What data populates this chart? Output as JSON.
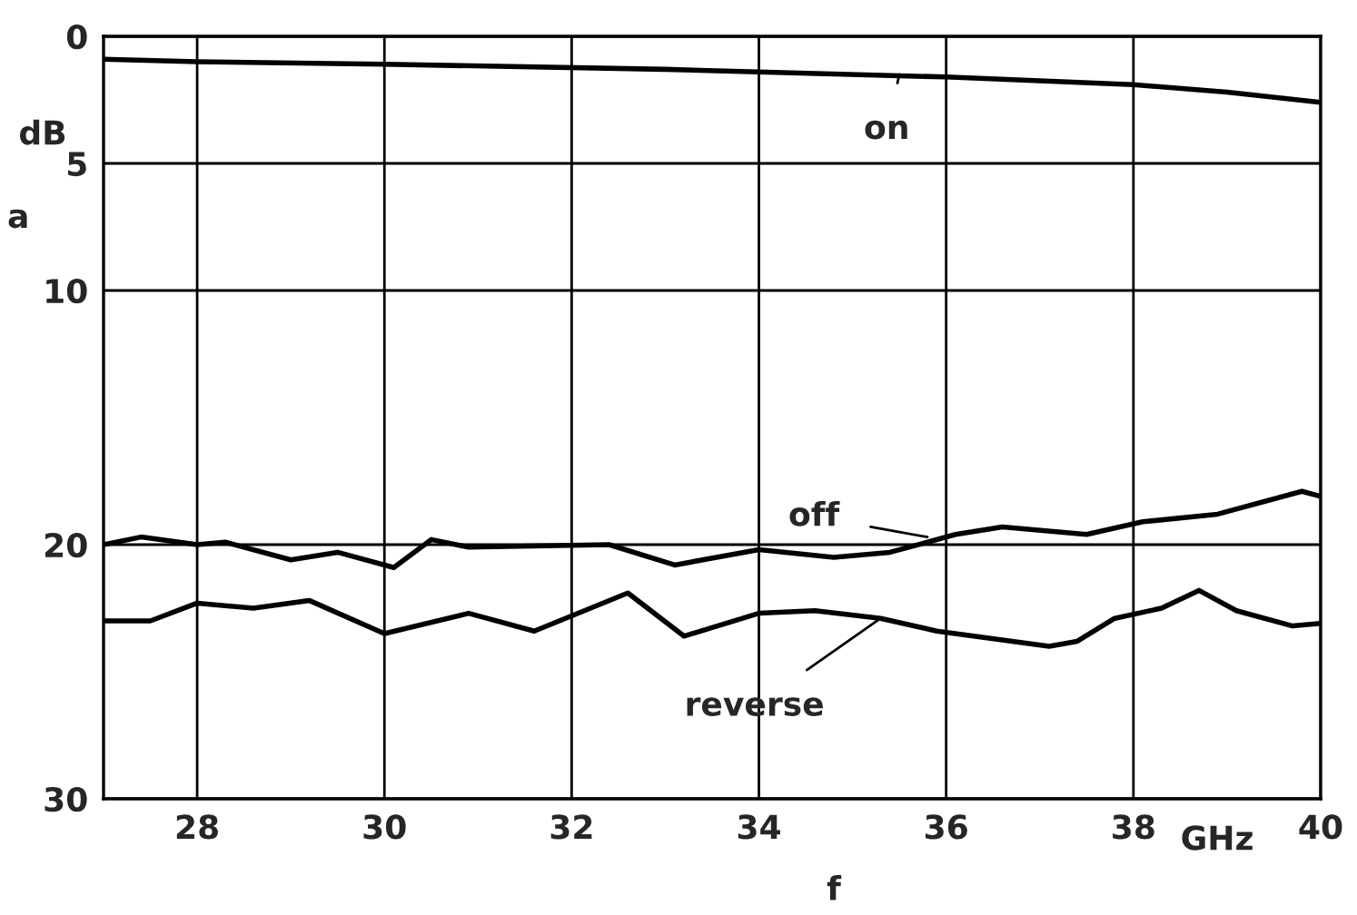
{
  "chart_data": {
    "type": "line",
    "xlabel": "f",
    "ylabel": "a",
    "xlim": [
      27,
      40
    ],
    "xticks": [
      28,
      30,
      32,
      34,
      36,
      38,
      40
    ],
    "ylim": [
      30,
      0
    ],
    "yticks": [
      0,
      5,
      10,
      20,
      30
    ],
    "grid": true,
    "series": [
      {
        "color": "#000000",
        "x": [
          27,
          28,
          30,
          33,
          36,
          38,
          39,
          40
        ],
        "values": [
          0.9,
          1.0,
          1.1,
          1.3,
          1.6,
          1.9,
          2.2,
          2.6
        ]
      },
      {
        "color": "#000000",
        "x": [
          27,
          27.4,
          28,
          28.3,
          29,
          29.5,
          30.1,
          30.5,
          30.9,
          32.4,
          33.1,
          34,
          34.8,
          35.4,
          36.1,
          36.6,
          37.5,
          38.1,
          38.9,
          39.8,
          40
        ],
        "values": [
          20.0,
          19.7,
          20.0,
          19.9,
          20.6,
          20.3,
          20.9,
          19.8,
          20.1,
          20.0,
          20.8,
          20.2,
          20.5,
          20.3,
          19.6,
          19.3,
          19.6,
          19.1,
          18.8,
          17.9,
          18.1
        ]
      },
      {
        "color": "#000000",
        "x": [
          27,
          27.5,
          28,
          28.6,
          29.2,
          30,
          30.9,
          31.6,
          32.6,
          33.2,
          34,
          34.6,
          35.3,
          35.9,
          37.1,
          37.4,
          37.8,
          38.3,
          38.7,
          39.1,
          39.7,
          40
        ],
        "values": [
          23.0,
          23.0,
          22.3,
          22.5,
          22.2,
          23.5,
          22.7,
          23.4,
          21.9,
          23.6,
          22.7,
          22.6,
          22.9,
          23.4,
          24.0,
          23.8,
          22.9,
          22.5,
          21.8,
          22.6,
          23.2,
          23.1
        ]
      }
    ],
    "annotations": [
      {
        "text": "on",
        "x": 35.5,
        "y": 1.5
      },
      {
        "text": "off",
        "x": 35.8,
        "y": 19.7
      },
      {
        "text": "reverse",
        "x": 35.3,
        "y": 22.9
      },
      "dB",
      "GHz"
    ]
  }
}
